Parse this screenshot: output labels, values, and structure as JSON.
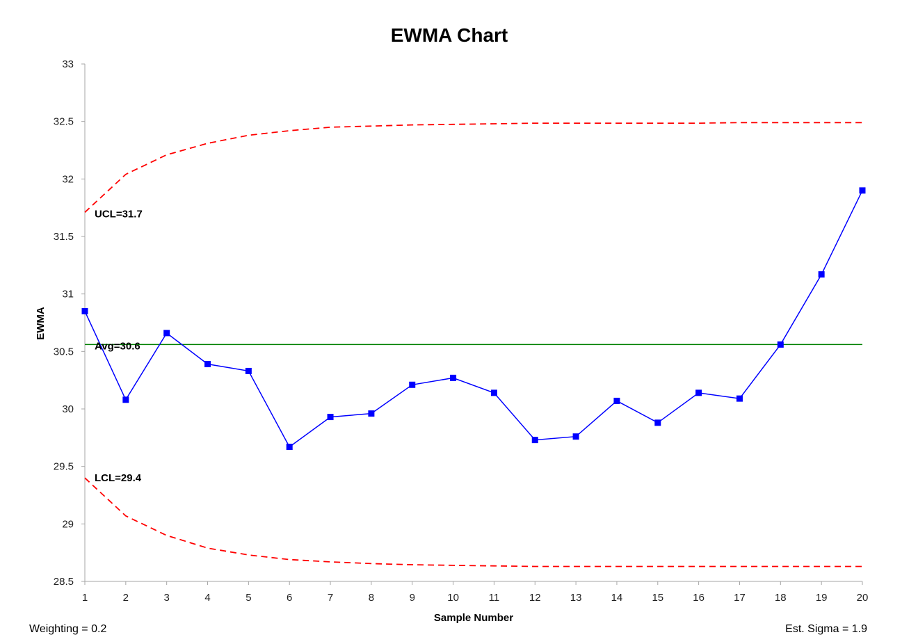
{
  "chart_data": {
    "type": "line",
    "title": "EWMA Chart",
    "xlabel": "Sample Number",
    "ylabel": "EWMA",
    "ylim": [
      28.5,
      33
    ],
    "yticks": [
      28.5,
      29,
      29.5,
      30,
      30.5,
      31,
      31.5,
      32,
      32.5,
      33
    ],
    "x": [
      1,
      2,
      3,
      4,
      5,
      6,
      7,
      8,
      9,
      10,
      11,
      12,
      13,
      14,
      15,
      16,
      17,
      18,
      19,
      20
    ],
    "series": [
      {
        "type": "line-markers",
        "color": "#0000FF",
        "values": [
          30.85,
          30.08,
          30.66,
          30.39,
          30.33,
          29.67,
          29.93,
          29.96,
          30.21,
          30.27,
          30.14,
          29.73,
          29.76,
          30.07,
          29.88,
          30.14,
          30.09,
          30.56,
          31.17,
          31.9
        ]
      },
      {
        "type": "dashed",
        "color": "#FF0000",
        "values": [
          31.71,
          32.04,
          32.21,
          32.31,
          32.38,
          32.42,
          32.45,
          32.46,
          32.47,
          32.475,
          32.48,
          32.485,
          32.485,
          32.485,
          32.485,
          32.485,
          32.49,
          32.49,
          32.49,
          32.49
        ]
      },
      {
        "type": "dashed",
        "color": "#FF0000",
        "values": [
          29.4,
          29.07,
          28.9,
          28.79,
          28.73,
          28.69,
          28.67,
          28.655,
          28.645,
          28.64,
          28.635,
          28.63,
          28.63,
          28.63,
          28.63,
          28.63,
          28.63,
          28.63,
          28.63,
          28.63
        ]
      }
    ],
    "center_line": {
      "value": 30.56,
      "color": "#008000"
    },
    "labels": {
      "ucl": "UCL=31.7",
      "avg": "Avg=30.6",
      "lcl": "LCL=29.4"
    },
    "footer": {
      "left": "Weighting = 0.2",
      "right": "Est. Sigma = 1.9"
    }
  }
}
